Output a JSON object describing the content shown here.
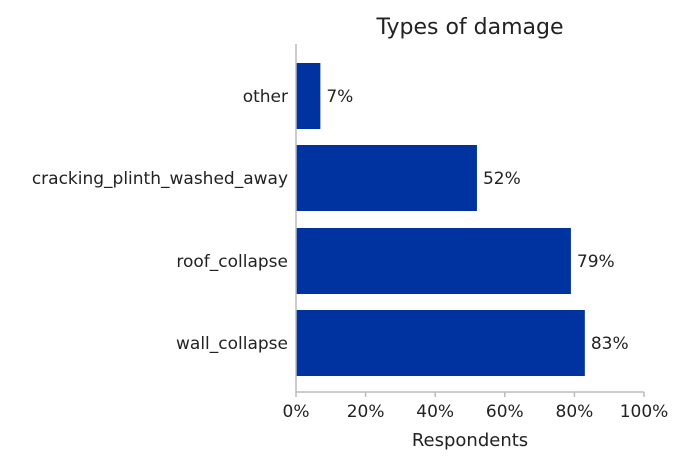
{
  "chart_data": {
    "type": "bar",
    "orientation": "horizontal",
    "title": "Types of damage",
    "xlabel": "Respondents",
    "ylabel": "",
    "xlim": [
      0,
      100
    ],
    "x_ticks": [
      "0%",
      "20%",
      "40%",
      "60%",
      "80%",
      "100%"
    ],
    "categories": [
      "other",
      "cracking_plinth_washed_away",
      "roof_collapse",
      "wall_collapse"
    ],
    "values": [
      7,
      52,
      79,
      83
    ],
    "data_labels": [
      "7%",
      "52%",
      "79%",
      "83%"
    ],
    "bar_color": "#0033a0",
    "grid": false
  }
}
